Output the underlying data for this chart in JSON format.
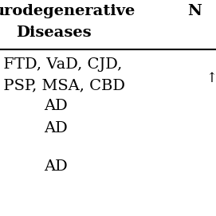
{
  "background_color": "#ffffff",
  "header_fontsize": 14,
  "body_fontsize": 14,
  "header_line1": "urodegenerative",
  "header_line2": "Diseases",
  "col2_header": "N",
  "row_texts": [
    ", FTD, VaD, CJD,",
    ", PSP, MSA, CBD",
    "AD",
    "AD",
    "",
    "AD"
  ],
  "col2_tick": "↑",
  "line_color": "#000000",
  "text_color": "#000000"
}
